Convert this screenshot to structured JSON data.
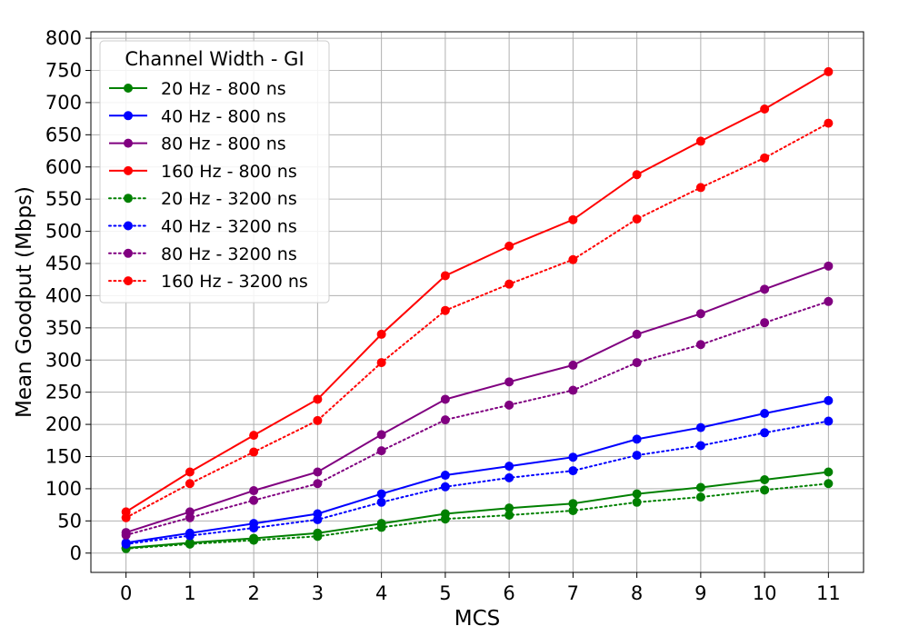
{
  "chart_data": {
    "type": "line",
    "xlabel": "MCS",
    "ylabel": "Mean Goodput (Mbps)",
    "x": [
      0,
      1,
      2,
      3,
      4,
      5,
      6,
      7,
      8,
      9,
      10,
      11
    ],
    "xlim": [
      -0.55,
      11.55
    ],
    "ylim": [
      -30,
      810
    ],
    "yticks": [
      0,
      50,
      100,
      150,
      200,
      250,
      300,
      350,
      400,
      450,
      500,
      550,
      600,
      650,
      700,
      750,
      800
    ],
    "grid": true,
    "legend": {
      "title": "Channel Width - GI",
      "placement": "top-left"
    },
    "series": [
      {
        "name": "20 Hz - 800 ns",
        "color": "#008000",
        "style": "solid",
        "values": [
          8,
          16,
          23,
          31,
          46,
          61,
          70,
          77,
          92,
          102,
          114,
          126
        ]
      },
      {
        "name": "40 Hz - 800 ns",
        "color": "#0000ff",
        "style": "solid",
        "values": [
          16,
          31,
          46,
          61,
          92,
          121,
          135,
          149,
          177,
          195,
          217,
          237
        ]
      },
      {
        "name": "80 Hz - 800 ns",
        "color": "#800080",
        "style": "solid",
        "values": [
          32,
          64,
          97,
          126,
          184,
          239,
          266,
          292,
          340,
          372,
          410,
          446
        ]
      },
      {
        "name": "160 Hz - 800 ns",
        "color": "#ff0000",
        "style": "solid",
        "values": [
          64,
          126,
          183,
          239,
          340,
          431,
          477,
          518,
          588,
          640,
          690,
          748
        ]
      },
      {
        "name": "20 Hz - 3200 ns",
        "color": "#008000",
        "style": "dotted",
        "values": [
          7,
          14,
          20,
          26,
          40,
          53,
          59,
          66,
          79,
          87,
          98,
          108
        ]
      },
      {
        "name": "40 Hz - 3200 ns",
        "color": "#0000ff",
        "style": "dotted",
        "values": [
          14,
          27,
          39,
          52,
          79,
          103,
          117,
          128,
          152,
          167,
          187,
          205
        ]
      },
      {
        "name": "80 Hz - 3200 ns",
        "color": "#800080",
        "style": "dotted",
        "values": [
          28,
          55,
          82,
          108,
          159,
          207,
          230,
          253,
          296,
          324,
          358,
          391
        ]
      },
      {
        "name": "160 Hz - 3200 ns",
        "color": "#ff0000",
        "style": "dotted",
        "values": [
          55,
          108,
          157,
          206,
          296,
          377,
          418,
          456,
          519,
          568,
          614,
          668
        ]
      }
    ]
  }
}
